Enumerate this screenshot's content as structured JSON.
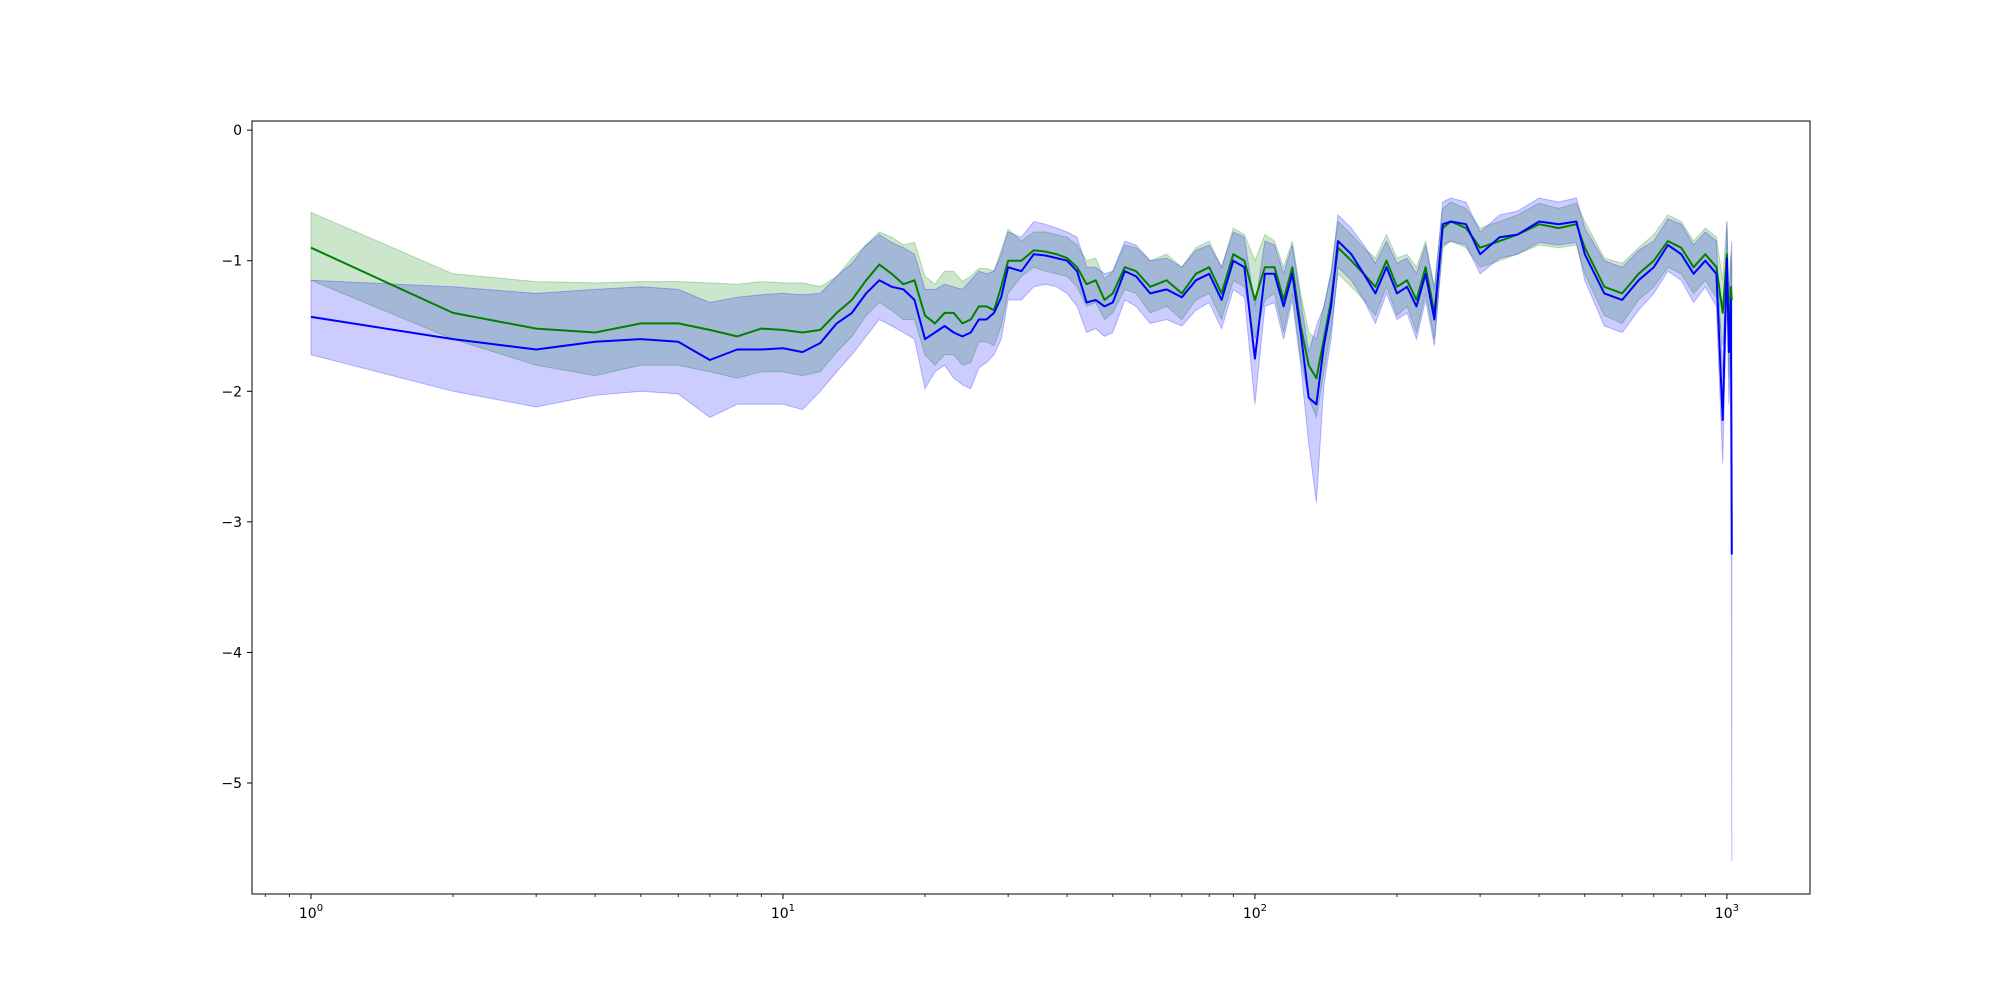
{
  "chart_data": {
    "type": "line",
    "title": "",
    "xlabel": "",
    "ylabel": "",
    "xscale": "log",
    "xlim": [
      0.75,
      1500
    ],
    "ylim": [
      -5.85,
      0.07
    ],
    "grid": false,
    "legend": "none",
    "x_ticks": [
      {
        "value": 1,
        "base": "10",
        "exp": "0"
      },
      {
        "value": 10,
        "base": "10",
        "exp": "1"
      },
      {
        "value": 100,
        "base": "10",
        "exp": "2"
      },
      {
        "value": 1000,
        "base": "10",
        "exp": "3"
      }
    ],
    "y_ticks": [
      {
        "value": 0,
        "label": "0"
      },
      {
        "value": -1,
        "label": "−1"
      },
      {
        "value": -2,
        "label": "−2"
      },
      {
        "value": -3,
        "label": "−3"
      },
      {
        "value": -4,
        "label": "−4"
      },
      {
        "value": -5,
        "label": "−5"
      }
    ],
    "series": [
      {
        "color": "#008000",
        "band_color": "#008000",
        "band_opacity": 0.2,
        "x": [
          1,
          2,
          3,
          4,
          5,
          6,
          7,
          8,
          9,
          10,
          11,
          12,
          13,
          14,
          15,
          16,
          17,
          18,
          19,
          20,
          21,
          22,
          23,
          24,
          25,
          26,
          27,
          28,
          29,
          30,
          32,
          34,
          36,
          38,
          40,
          42,
          44,
          46,
          48,
          50,
          53,
          56,
          60,
          65,
          70,
          75,
          80,
          85,
          90,
          95,
          100,
          105,
          110,
          115,
          120,
          125,
          130,
          135,
          140,
          145,
          150,
          160,
          170,
          180,
          190,
          200,
          210,
          220,
          230,
          240,
          250,
          260,
          280,
          300,
          330,
          360,
          400,
          440,
          480,
          500,
          550,
          600,
          650,
          700,
          750,
          800,
          850,
          900,
          950,
          980,
          1000,
          1010,
          1020,
          1024
        ],
        "y": [
          -0.9,
          -1.4,
          -1.52,
          -1.55,
          -1.48,
          -1.48,
          -1.53,
          -1.58,
          -1.52,
          -1.53,
          -1.55,
          -1.53,
          -1.4,
          -1.3,
          -1.15,
          -1.03,
          -1.1,
          -1.18,
          -1.15,
          -1.42,
          -1.48,
          -1.4,
          -1.4,
          -1.48,
          -1.45,
          -1.35,
          -1.35,
          -1.38,
          -1.2,
          -1.0,
          -1.0,
          -0.92,
          -0.93,
          -0.95,
          -0.98,
          -1.05,
          -1.18,
          -1.15,
          -1.3,
          -1.25,
          -1.05,
          -1.08,
          -1.2,
          -1.15,
          -1.25,
          -1.1,
          -1.05,
          -1.25,
          -0.95,
          -1.0,
          -1.3,
          -1.05,
          -1.05,
          -1.3,
          -1.05,
          -1.5,
          -1.8,
          -1.9,
          -1.6,
          -1.3,
          -0.9,
          -1.0,
          -1.1,
          -1.2,
          -1.0,
          -1.2,
          -1.15,
          -1.3,
          -1.05,
          -1.4,
          -0.75,
          -0.7,
          -0.75,
          -0.9,
          -0.85,
          -0.8,
          -0.72,
          -0.75,
          -0.72,
          -0.9,
          -1.2,
          -1.25,
          -1.1,
          -1.0,
          -0.85,
          -0.9,
          -1.05,
          -0.95,
          -1.05,
          -1.4,
          -0.95,
          -1.6,
          -1.2,
          -1.3
        ],
        "lower": [
          -1.15,
          -1.6,
          -1.8,
          -1.88,
          -1.8,
          -1.8,
          -1.85,
          -1.9,
          -1.85,
          -1.85,
          -1.88,
          -1.85,
          -1.7,
          -1.58,
          -1.42,
          -1.32,
          -1.38,
          -1.45,
          -1.45,
          -1.72,
          -1.8,
          -1.72,
          -1.72,
          -1.8,
          -1.78,
          -1.62,
          -1.62,
          -1.65,
          -1.5,
          -1.25,
          -1.12,
          -1.05,
          -1.08,
          -1.1,
          -1.12,
          -1.2,
          -1.35,
          -1.32,
          -1.45,
          -1.4,
          -1.22,
          -1.25,
          -1.4,
          -1.35,
          -1.45,
          -1.3,
          -1.25,
          -1.45,
          -1.15,
          -1.2,
          -1.6,
          -1.3,
          -1.25,
          -1.55,
          -1.25,
          -1.75,
          -2.05,
          -2.2,
          -1.85,
          -1.52,
          -1.1,
          -1.2,
          -1.3,
          -1.42,
          -1.2,
          -1.42,
          -1.35,
          -1.55,
          -1.25,
          -1.6,
          -0.9,
          -0.85,
          -0.9,
          -1.05,
          -1.0,
          -0.95,
          -0.88,
          -0.9,
          -0.88,
          -1.1,
          -1.42,
          -1.48,
          -1.3,
          -1.2,
          -1.05,
          -1.1,
          -1.25,
          -1.15,
          -1.28,
          -1.65,
          -1.2,
          -1.9,
          -1.45,
          -1.55
        ],
        "upper": [
          -0.63,
          -1.1,
          -1.16,
          -1.17,
          -1.16,
          -1.16,
          -1.17,
          -1.18,
          -1.16,
          -1.17,
          -1.17,
          -1.2,
          -1.12,
          -0.98,
          -0.88,
          -0.78,
          -0.82,
          -0.88,
          -0.86,
          -1.12,
          -1.18,
          -1.08,
          -1.08,
          -1.16,
          -1.12,
          -1.06,
          -1.06,
          -1.08,
          -0.92,
          -0.76,
          -0.85,
          -0.78,
          -0.78,
          -0.8,
          -0.82,
          -0.88,
          -1.0,
          -0.98,
          -1.14,
          -1.08,
          -0.88,
          -0.9,
          -1.0,
          -0.95,
          -1.05,
          -0.9,
          -0.85,
          -1.05,
          -0.75,
          -0.8,
          -1.0,
          -0.8,
          -0.85,
          -1.05,
          -0.85,
          -1.25,
          -1.55,
          -1.6,
          -1.35,
          -1.08,
          -0.7,
          -0.8,
          -0.9,
          -0.98,
          -0.8,
          -0.98,
          -0.95,
          -1.05,
          -0.85,
          -1.2,
          -0.6,
          -0.55,
          -0.6,
          -0.75,
          -0.7,
          -0.65,
          -0.56,
          -0.6,
          -0.56,
          -0.7,
          -0.98,
          -1.02,
          -0.9,
          -0.8,
          -0.65,
          -0.7,
          -0.85,
          -0.75,
          -0.82,
          -1.15,
          -0.7,
          -1.3,
          -0.95,
          -1.05
        ]
      },
      {
        "color": "#0000ff",
        "band_color": "#0000ff",
        "band_opacity": 0.2,
        "x": [
          1,
          2,
          3,
          4,
          5,
          6,
          7,
          8,
          9,
          10,
          11,
          12,
          13,
          14,
          15,
          16,
          17,
          18,
          19,
          20,
          21,
          22,
          23,
          24,
          25,
          26,
          27,
          28,
          29,
          30,
          32,
          34,
          36,
          38,
          40,
          42,
          44,
          46,
          48,
          50,
          53,
          56,
          60,
          65,
          70,
          75,
          80,
          85,
          90,
          95,
          100,
          105,
          110,
          115,
          120,
          125,
          130,
          135,
          140,
          145,
          150,
          160,
          170,
          180,
          190,
          200,
          210,
          220,
          230,
          240,
          250,
          260,
          280,
          300,
          330,
          360,
          400,
          440,
          480,
          500,
          550,
          600,
          650,
          700,
          750,
          800,
          850,
          900,
          950,
          980,
          1000,
          1010,
          1020,
          1024
        ],
        "y": [
          -1.43,
          -1.6,
          -1.68,
          -1.62,
          -1.6,
          -1.62,
          -1.76,
          -1.68,
          -1.68,
          -1.67,
          -1.7,
          -1.63,
          -1.48,
          -1.4,
          -1.25,
          -1.15,
          -1.2,
          -1.22,
          -1.3,
          -1.6,
          -1.55,
          -1.5,
          -1.55,
          -1.58,
          -1.55,
          -1.45,
          -1.45,
          -1.4,
          -1.28,
          -1.05,
          -1.08,
          -0.95,
          -0.96,
          -0.98,
          -1.0,
          -1.08,
          -1.32,
          -1.3,
          -1.35,
          -1.32,
          -1.08,
          -1.12,
          -1.25,
          -1.22,
          -1.28,
          -1.15,
          -1.1,
          -1.3,
          -1.0,
          -1.05,
          -1.75,
          -1.1,
          -1.1,
          -1.35,
          -1.1,
          -1.55,
          -2.05,
          -2.1,
          -1.65,
          -1.35,
          -0.85,
          -0.95,
          -1.1,
          -1.25,
          -1.05,
          -1.25,
          -1.2,
          -1.35,
          -1.1,
          -1.45,
          -0.72,
          -0.7,
          -0.72,
          -0.95,
          -0.82,
          -0.8,
          -0.7,
          -0.72,
          -0.7,
          -0.95,
          -1.25,
          -1.3,
          -1.15,
          -1.05,
          -0.88,
          -0.95,
          -1.1,
          -1.0,
          -1.1,
          -2.22,
          -0.98,
          -1.7,
          -1.3,
          -3.25
        ],
        "lower": [
          -1.72,
          -2.0,
          -2.12,
          -2.03,
          -2.0,
          -2.02,
          -2.2,
          -2.1,
          -2.1,
          -2.1,
          -2.14,
          -2.0,
          -1.85,
          -1.72,
          -1.58,
          -1.45,
          -1.5,
          -1.55,
          -1.6,
          -1.98,
          -1.85,
          -1.8,
          -1.9,
          -1.95,
          -1.98,
          -1.82,
          -1.78,
          -1.72,
          -1.6,
          -1.3,
          -1.3,
          -1.2,
          -1.18,
          -1.2,
          -1.25,
          -1.35,
          -1.55,
          -1.52,
          -1.58,
          -1.55,
          -1.3,
          -1.35,
          -1.48,
          -1.45,
          -1.5,
          -1.38,
          -1.32,
          -1.52,
          -1.22,
          -1.28,
          -2.1,
          -1.35,
          -1.32,
          -1.6,
          -1.3,
          -1.8,
          -2.4,
          -2.85,
          -1.95,
          -1.6,
          -1.05,
          -1.15,
          -1.3,
          -1.48,
          -1.25,
          -1.45,
          -1.4,
          -1.6,
          -1.3,
          -1.65,
          -0.88,
          -0.85,
          -0.88,
          -1.1,
          -0.98,
          -0.95,
          -0.86,
          -0.88,
          -0.86,
          -1.15,
          -1.5,
          -1.55,
          -1.38,
          -1.25,
          -1.08,
          -1.15,
          -1.32,
          -1.2,
          -1.35,
          -2.55,
          -1.25,
          -2.1,
          -1.6,
          -5.6
        ],
        "upper": [
          -1.15,
          -1.2,
          -1.25,
          -1.22,
          -1.2,
          -1.22,
          -1.32,
          -1.28,
          -1.26,
          -1.25,
          -1.26,
          -1.25,
          -1.12,
          -1.02,
          -0.88,
          -0.8,
          -0.86,
          -0.9,
          -0.95,
          -1.22,
          -1.22,
          -1.18,
          -1.2,
          -1.22,
          -1.15,
          -1.08,
          -1.1,
          -1.08,
          -0.95,
          -0.78,
          -0.82,
          -0.7,
          -0.72,
          -0.75,
          -0.78,
          -0.82,
          -1.05,
          -1.05,
          -1.1,
          -1.08,
          -0.85,
          -0.88,
          -1.0,
          -0.98,
          -1.05,
          -0.92,
          -0.88,
          -1.05,
          -0.78,
          -0.82,
          -1.35,
          -0.85,
          -0.88,
          -1.1,
          -0.88,
          -1.3,
          -1.7,
          -1.5,
          -1.35,
          -1.1,
          -0.65,
          -0.75,
          -0.88,
          -1.02,
          -0.85,
          -1.02,
          -0.98,
          -1.1,
          -0.88,
          -1.22,
          -0.55,
          -0.52,
          -0.55,
          -0.78,
          -0.65,
          -0.62,
          -0.52,
          -0.55,
          -0.52,
          -0.75,
          -1.0,
          -1.05,
          -0.92,
          -0.85,
          -0.68,
          -0.72,
          -0.88,
          -0.78,
          -0.85,
          -1.85,
          -0.7,
          -1.3,
          -0.95,
          -0.85
        ]
      }
    ]
  }
}
